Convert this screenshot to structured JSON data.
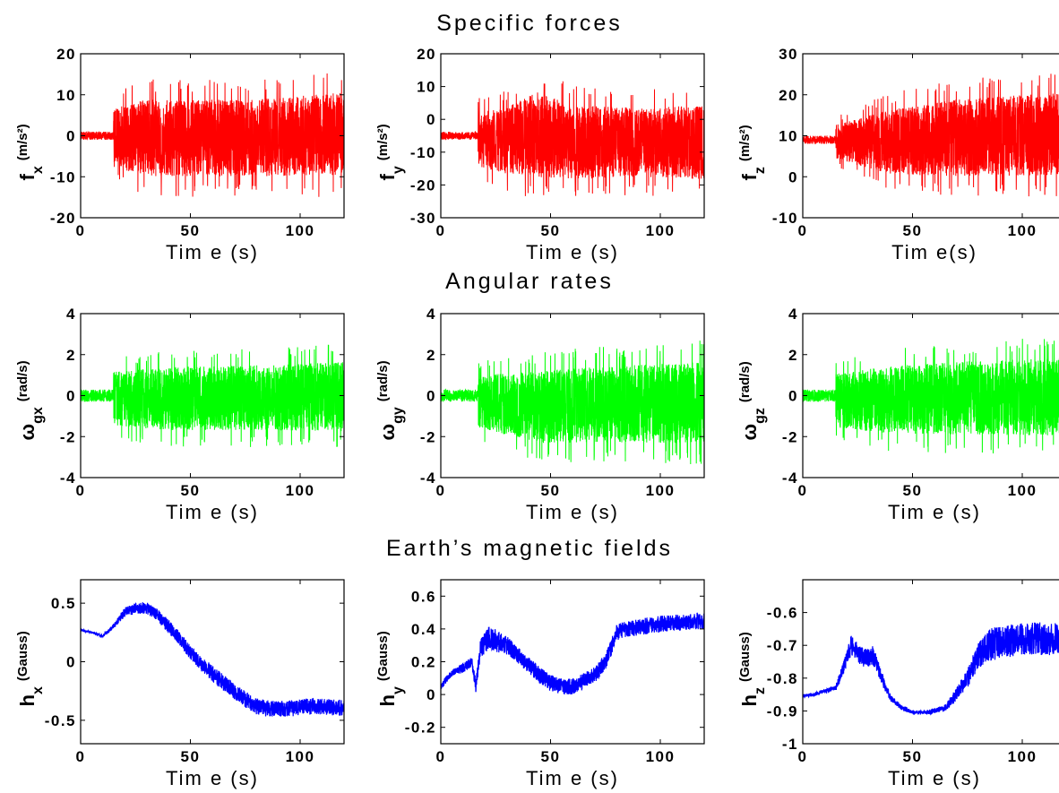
{
  "groups": [
    {
      "title": "Specific forces"
    },
    {
      "title": "Angular rates"
    },
    {
      "title": "Earth’s magnetic fields"
    }
  ],
  "chart_data": [
    {
      "type": "line",
      "xlabel": "Tim e (s)",
      "ylabel_main": "f",
      "ylabel_sub": "x",
      "ylabel_unit": "(m/s²)",
      "xlim": [
        0,
        120
      ],
      "ylim": [
        -20,
        20
      ],
      "xticks": [
        "0",
        "50",
        "100"
      ],
      "yticks": [
        "-20",
        "-10",
        "0",
        "10",
        "20"
      ],
      "color": "#ff0000",
      "series": [
        {
          "kind": "noise",
          "onset": 15,
          "base": 0,
          "pre_amp": 1,
          "env_x": [
            15,
            30,
            45,
            80,
            120
          ],
          "env_up": [
            9,
            12,
            12,
            12,
            14
          ],
          "env_lo": [
            -10,
            -13,
            -13,
            -13,
            -13
          ]
        }
      ]
    },
    {
      "type": "line",
      "xlabel": "Tim e (s)",
      "ylabel_main": "f",
      "ylabel_sub": "y",
      "ylabel_unit": "(m/s²)",
      "xlim": [
        0,
        120
      ],
      "ylim": [
        -30,
        20
      ],
      "xticks": [
        "0",
        "50",
        "100"
      ],
      "yticks": [
        "-30",
        "-20",
        "-10",
        "0",
        "10",
        "20"
      ],
      "color": "#ff0000",
      "series": [
        {
          "kind": "noise",
          "onset": 17,
          "base": -5,
          "pre_amp": 1.2,
          "env_x": [
            17,
            30,
            45,
            60,
            90,
            120
          ],
          "env_up": [
            5,
            7,
            13,
            8,
            7,
            8
          ],
          "env_lo": [
            -17,
            -20,
            -22,
            -22,
            -21,
            -22
          ]
        }
      ]
    },
    {
      "type": "line",
      "xlabel": "Tim e(s)",
      "ylabel_main": "f",
      "ylabel_sub": "z",
      "ylabel_unit": "(m/s²)",
      "xlim": [
        0,
        120
      ],
      "ylim": [
        -10,
        30
      ],
      "xticks": [
        "0",
        "50",
        "100"
      ],
      "yticks": [
        "-10",
        "0",
        "10",
        "20",
        "30"
      ],
      "color": "#ff0000",
      "series": [
        {
          "kind": "noise",
          "onset": 15,
          "base": 9,
          "pre_amp": 1,
          "env_x": [
            15,
            40,
            70,
            120
          ],
          "env_up": [
            14,
            19,
            22,
            24
          ],
          "env_lo": [
            3,
            -2,
            -3,
            -3
          ]
        }
      ]
    },
    {
      "type": "line",
      "xlabel": "Tim e  (s)",
      "ylabel_main": "ω",
      "ylabel_sub": "gx",
      "ylabel_unit": "(rad/s)",
      "xlim": [
        0,
        120
      ],
      "ylim": [
        -4,
        4
      ],
      "xticks": [
        "0",
        "50",
        "100"
      ],
      "yticks": [
        "-4",
        "-2",
        "0",
        "2",
        "4"
      ],
      "color": "#00ff00",
      "series": [
        {
          "kind": "noise",
          "onset": 15,
          "base": 0,
          "pre_amp": 0.3,
          "env_x": [
            15,
            40,
            80,
            120
          ],
          "env_up": [
            1.6,
            1.9,
            2.0,
            2.2
          ],
          "env_lo": [
            -1.9,
            -2.2,
            -2.2,
            -2.3
          ]
        }
      ]
    },
    {
      "type": "line",
      "xlabel": "Tim e  (s)",
      "ylabel_main": "ω",
      "ylabel_sub": "gy",
      "ylabel_unit": "(rad/s)",
      "xlim": [
        0,
        120
      ],
      "ylim": [
        -4,
        4
      ],
      "xticks": [
        "0",
        "50",
        "100"
      ],
      "yticks": [
        "-4",
        "-2",
        "0",
        "2",
        "4"
      ],
      "color": "#00ff00",
      "series": [
        {
          "kind": "noise",
          "onset": 17,
          "base": 0,
          "pre_amp": 0.3,
          "env_x": [
            17,
            45,
            80,
            120
          ],
          "env_up": [
            1.4,
            1.8,
            2.1,
            2.3
          ],
          "env_lo": [
            -2.0,
            -2.9,
            -2.9,
            -3.0
          ]
        }
      ]
    },
    {
      "type": "line",
      "xlabel": "Tim e  (s)",
      "ylabel_main": "ω",
      "ylabel_sub": "gz",
      "ylabel_unit": "(rad/s)",
      "xlim": [
        0,
        120
      ],
      "ylim": [
        -4,
        4
      ],
      "xticks": [
        "0",
        "50",
        "100"
      ],
      "yticks": [
        "-4",
        "-2",
        "0",
        "2",
        "4"
      ],
      "color": "#00ff00",
      "series": [
        {
          "kind": "noise",
          "onset": 15,
          "base": 0,
          "pre_amp": 0.3,
          "env_x": [
            15,
            40,
            80,
            120
          ],
          "env_up": [
            1.5,
            2.0,
            2.3,
            2.5
          ],
          "env_lo": [
            -2.0,
            -2.4,
            -2.5,
            -2.6
          ]
        }
      ]
    },
    {
      "type": "line",
      "xlabel": "Tim e  (s)",
      "ylabel_main": "h",
      "ylabel_sub": "x",
      "ylabel_unit": "(Gauss)",
      "xlim": [
        0,
        120
      ],
      "ylim": [
        -0.7,
        0.7
      ],
      "xticks": [
        "0",
        "50",
        "100"
      ],
      "yticks": [
        "-0.5",
        "0",
        "0.5"
      ],
      "color": "#0000ff",
      "series": [
        {
          "kind": "trend",
          "x": [
            0,
            5,
            10,
            15,
            20,
            25,
            30,
            35,
            40,
            45,
            50,
            55,
            60,
            65,
            70,
            75,
            80,
            85,
            90,
            95,
            100,
            105,
            110,
            115,
            120
          ],
          "y": [
            0.27,
            0.25,
            0.22,
            0.3,
            0.42,
            0.46,
            0.46,
            0.4,
            0.3,
            0.2,
            0.08,
            -0.02,
            -0.1,
            -0.18,
            -0.25,
            -0.32,
            -0.38,
            -0.4,
            -0.4,
            -0.4,
            -0.39,
            -0.38,
            -0.38,
            -0.39,
            -0.39
          ],
          "noise": [
            0.01,
            0.01,
            0.01,
            0.02,
            0.04,
            0.05,
            0.05,
            0.05,
            0.06,
            0.06,
            0.06,
            0.06,
            0.07,
            0.07,
            0.07,
            0.07,
            0.07,
            0.07,
            0.07,
            0.07,
            0.07,
            0.07,
            0.07,
            0.07,
            0.07
          ]
        }
      ]
    },
    {
      "type": "line",
      "xlabel": "Tim e  (s)",
      "ylabel_main": "h",
      "ylabel_sub": "y",
      "ylabel_unit": "(Gauss)",
      "xlim": [
        0,
        120
      ],
      "ylim": [
        -0.3,
        0.7
      ],
      "xticks": [
        "0",
        "50",
        "100"
      ],
      "yticks": [
        "-0.2",
        "0",
        "0.2",
        "0.4",
        "0.6"
      ],
      "color": "#0000ff",
      "series": [
        {
          "kind": "trend",
          "x": [
            0,
            3,
            6,
            10,
            14,
            16,
            18,
            22,
            25,
            30,
            35,
            40,
            45,
            50,
            55,
            60,
            65,
            70,
            75,
            78,
            80,
            85,
            90,
            95,
            100,
            110,
            120
          ],
          "y": [
            0.05,
            0.1,
            0.14,
            0.16,
            0.2,
            0.05,
            0.28,
            0.35,
            0.33,
            0.3,
            0.24,
            0.18,
            0.12,
            0.07,
            0.05,
            0.05,
            0.08,
            0.12,
            0.2,
            0.3,
            0.38,
            0.4,
            0.41,
            0.42,
            0.43,
            0.44,
            0.45
          ],
          "noise": [
            0.02,
            0.02,
            0.02,
            0.03,
            0.03,
            0.04,
            0.06,
            0.07,
            0.07,
            0.06,
            0.05,
            0.05,
            0.05,
            0.05,
            0.05,
            0.05,
            0.05,
            0.05,
            0.05,
            0.05,
            0.05,
            0.05,
            0.05,
            0.05,
            0.05,
            0.05,
            0.05
          ]
        }
      ]
    },
    {
      "type": "line",
      "xlabel": "Tim e  (s)",
      "ylabel_main": "h",
      "ylabel_sub": "z",
      "ylabel_unit": "(Gauss)",
      "xlim": [
        0,
        120
      ],
      "ylim": [
        -1.0,
        -0.5
      ],
      "xticks": [
        "0",
        "50",
        "100"
      ],
      "yticks": [
        "-1",
        "-0.9",
        "-0.8",
        "-0.7",
        "-0.6"
      ],
      "color": "#0000ff",
      "series": [
        {
          "kind": "trend",
          "x": [
            0,
            5,
            10,
            15,
            18,
            22,
            25,
            28,
            32,
            36,
            40,
            45,
            50,
            55,
            60,
            65,
            70,
            75,
            80,
            85,
            90,
            100,
            110,
            120
          ],
          "y": [
            -0.855,
            -0.85,
            -0.84,
            -0.83,
            -0.78,
            -0.7,
            -0.72,
            -0.74,
            -0.73,
            -0.8,
            -0.86,
            -0.89,
            -0.905,
            -0.905,
            -0.9,
            -0.89,
            -0.85,
            -0.8,
            -0.73,
            -0.7,
            -0.69,
            -0.68,
            -0.68,
            -0.68
          ],
          "noise": [
            0.005,
            0.005,
            0.006,
            0.008,
            0.02,
            0.03,
            0.03,
            0.03,
            0.03,
            0.02,
            0.01,
            0.008,
            0.006,
            0.006,
            0.008,
            0.01,
            0.02,
            0.03,
            0.04,
            0.05,
            0.05,
            0.05,
            0.05,
            0.05
          ]
        }
      ]
    }
  ]
}
